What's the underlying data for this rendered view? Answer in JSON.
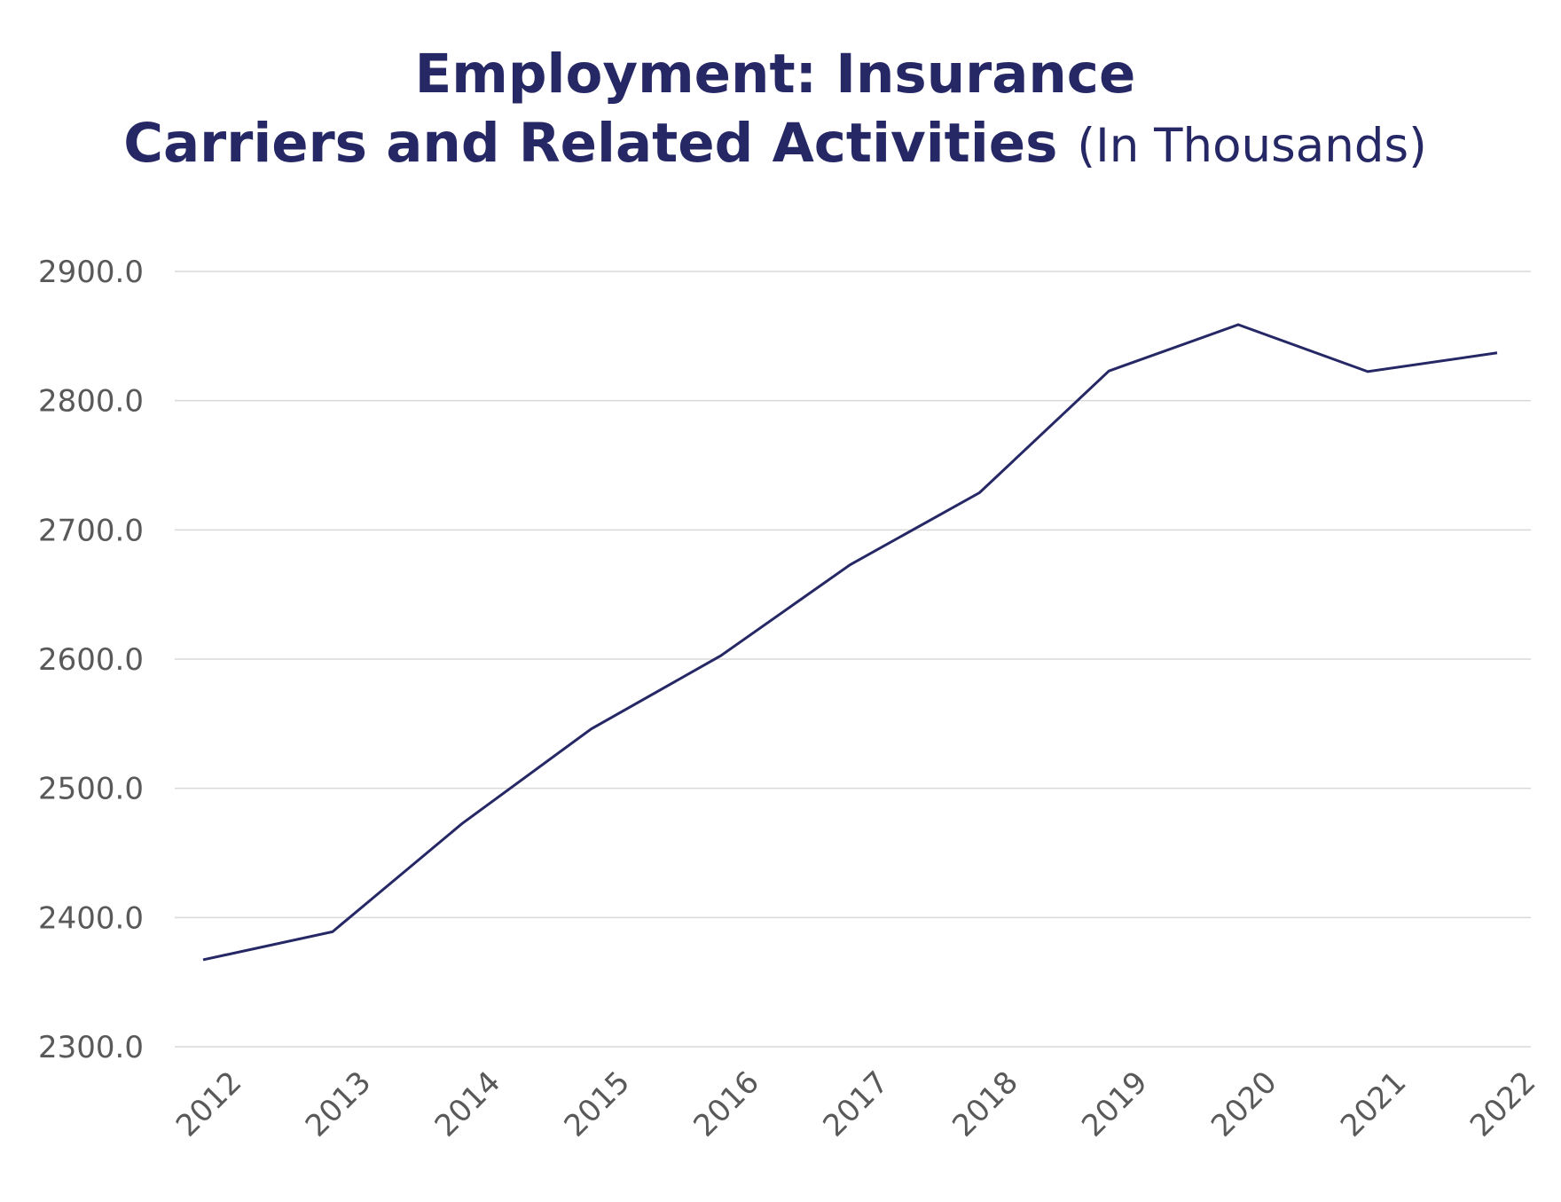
{
  "chart_data": {
    "type": "line",
    "title_lines": [
      "Employment: Insurance",
      "Carriers and Related Activities"
    ],
    "subtitle": "(In Thousands)",
    "categories": [
      "2012",
      "2013",
      "2014",
      "2015",
      "2016",
      "2017",
      "2018",
      "2019",
      "2020",
      "2021",
      "2022"
    ],
    "series": [
      {
        "name": "Employment",
        "color": "#262866",
        "values": [
          2367.3,
          2389.0,
          2472.6,
          2546.0,
          2602.6,
          2673.0,
          2728.8,
          2823.0,
          2858.8,
          2822.5,
          2837.0
        ]
      }
    ],
    "ylim": [
      2300,
      2900
    ],
    "yticks": [
      {
        "value": 2300,
        "label": "2300.0"
      },
      {
        "value": 2400,
        "label": "2400.0"
      },
      {
        "value": 2500,
        "label": "2500.0"
      },
      {
        "value": 2600,
        "label": "2600.0"
      },
      {
        "value": 2700,
        "label": "2700.0"
      },
      {
        "value": 2800,
        "label": "2800.0"
      },
      {
        "value": 2900,
        "label": "2900.0"
      }
    ],
    "grid": true
  }
}
